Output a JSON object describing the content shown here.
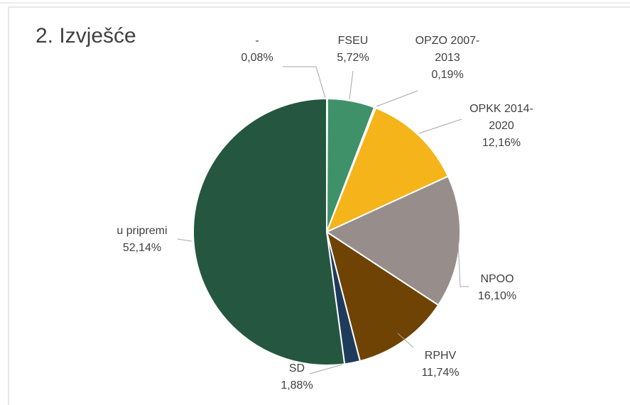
{
  "chart_data": {
    "type": "pie",
    "title": "2. Izvješće",
    "categories": [
      "-",
      "FSEU",
      "OPZO 2007-2013",
      "OPKK 2014-2020",
      "NPOO",
      "RPHV",
      "SD",
      "u pripremi"
    ],
    "values": [
      0.08,
      5.72,
      0.19,
      12.16,
      16.1,
      11.74,
      1.88,
      52.14
    ],
    "value_labels": [
      "0,08%",
      "5,72%",
      "0,19%",
      "12,16%",
      "16,10%",
      "11,74%",
      "1,88%",
      "52,14%"
    ],
    "colors": [
      "#8c8c8c",
      "#3f916a",
      "#2f6b4c",
      "#f5b41a",
      "#978d8a",
      "#6e4304",
      "#1f3b5c",
      "#255740"
    ]
  }
}
